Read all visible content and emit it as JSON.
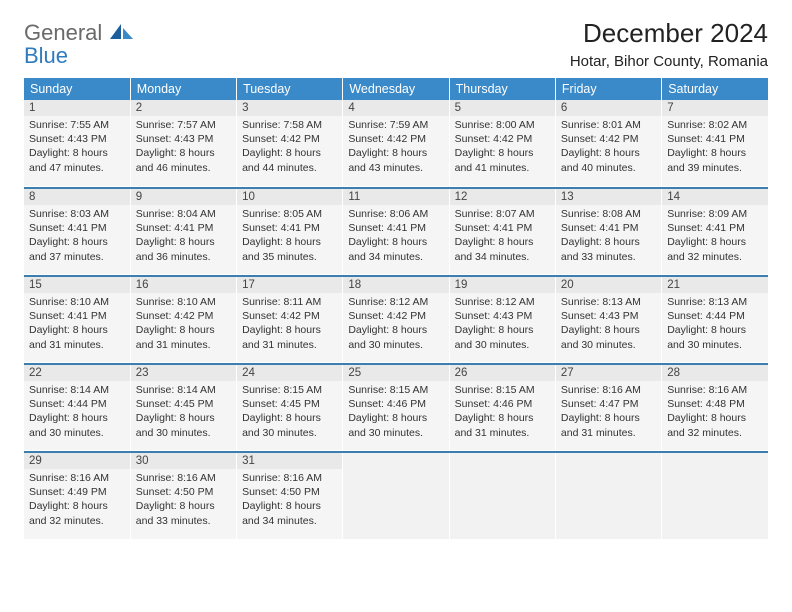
{
  "logo": {
    "line1": "General",
    "line2": "Blue",
    "text_color": "#6a6a6a",
    "blue_color": "#2f7bbf",
    "icon_fill_dark": "#1b5e9b",
    "icon_fill_light": "#3a89c9"
  },
  "header": {
    "month_title": "December 2024",
    "location": "Hotar, Bihor County, Romania"
  },
  "style": {
    "header_bg": "#3a89c9",
    "header_fg": "#ffffff",
    "row_divider": "#3a7fb0",
    "daynum_bg": "#e9e9e9",
    "daybody_bg": "#f5f5f5",
    "empty_bg": "#f2f2f2",
    "text_color": "#333333",
    "fontsize_header": 12.5,
    "fontsize_daynum": 11.5,
    "fontsize_body": 10.5
  },
  "weekdays": [
    "Sunday",
    "Monday",
    "Tuesday",
    "Wednesday",
    "Thursday",
    "Friday",
    "Saturday"
  ],
  "weeks": [
    [
      {
        "n": "1",
        "sr": "7:55 AM",
        "ss": "4:43 PM",
        "dl": "8 hours and 47 minutes."
      },
      {
        "n": "2",
        "sr": "7:57 AM",
        "ss": "4:43 PM",
        "dl": "8 hours and 46 minutes."
      },
      {
        "n": "3",
        "sr": "7:58 AM",
        "ss": "4:42 PM",
        "dl": "8 hours and 44 minutes."
      },
      {
        "n": "4",
        "sr": "7:59 AM",
        "ss": "4:42 PM",
        "dl": "8 hours and 43 minutes."
      },
      {
        "n": "5",
        "sr": "8:00 AM",
        "ss": "4:42 PM",
        "dl": "8 hours and 41 minutes."
      },
      {
        "n": "6",
        "sr": "8:01 AM",
        "ss": "4:42 PM",
        "dl": "8 hours and 40 minutes."
      },
      {
        "n": "7",
        "sr": "8:02 AM",
        "ss": "4:41 PM",
        "dl": "8 hours and 39 minutes."
      }
    ],
    [
      {
        "n": "8",
        "sr": "8:03 AM",
        "ss": "4:41 PM",
        "dl": "8 hours and 37 minutes."
      },
      {
        "n": "9",
        "sr": "8:04 AM",
        "ss": "4:41 PM",
        "dl": "8 hours and 36 minutes."
      },
      {
        "n": "10",
        "sr": "8:05 AM",
        "ss": "4:41 PM",
        "dl": "8 hours and 35 minutes."
      },
      {
        "n": "11",
        "sr": "8:06 AM",
        "ss": "4:41 PM",
        "dl": "8 hours and 34 minutes."
      },
      {
        "n": "12",
        "sr": "8:07 AM",
        "ss": "4:41 PM",
        "dl": "8 hours and 34 minutes."
      },
      {
        "n": "13",
        "sr": "8:08 AM",
        "ss": "4:41 PM",
        "dl": "8 hours and 33 minutes."
      },
      {
        "n": "14",
        "sr": "8:09 AM",
        "ss": "4:41 PM",
        "dl": "8 hours and 32 minutes."
      }
    ],
    [
      {
        "n": "15",
        "sr": "8:10 AM",
        "ss": "4:41 PM",
        "dl": "8 hours and 31 minutes."
      },
      {
        "n": "16",
        "sr": "8:10 AM",
        "ss": "4:42 PM",
        "dl": "8 hours and 31 minutes."
      },
      {
        "n": "17",
        "sr": "8:11 AM",
        "ss": "4:42 PM",
        "dl": "8 hours and 31 minutes."
      },
      {
        "n": "18",
        "sr": "8:12 AM",
        "ss": "4:42 PM",
        "dl": "8 hours and 30 minutes."
      },
      {
        "n": "19",
        "sr": "8:12 AM",
        "ss": "4:43 PM",
        "dl": "8 hours and 30 minutes."
      },
      {
        "n": "20",
        "sr": "8:13 AM",
        "ss": "4:43 PM",
        "dl": "8 hours and 30 minutes."
      },
      {
        "n": "21",
        "sr": "8:13 AM",
        "ss": "4:44 PM",
        "dl": "8 hours and 30 minutes."
      }
    ],
    [
      {
        "n": "22",
        "sr": "8:14 AM",
        "ss": "4:44 PM",
        "dl": "8 hours and 30 minutes."
      },
      {
        "n": "23",
        "sr": "8:14 AM",
        "ss": "4:45 PM",
        "dl": "8 hours and 30 minutes."
      },
      {
        "n": "24",
        "sr": "8:15 AM",
        "ss": "4:45 PM",
        "dl": "8 hours and 30 minutes."
      },
      {
        "n": "25",
        "sr": "8:15 AM",
        "ss": "4:46 PM",
        "dl": "8 hours and 30 minutes."
      },
      {
        "n": "26",
        "sr": "8:15 AM",
        "ss": "4:46 PM",
        "dl": "8 hours and 31 minutes."
      },
      {
        "n": "27",
        "sr": "8:16 AM",
        "ss": "4:47 PM",
        "dl": "8 hours and 31 minutes."
      },
      {
        "n": "28",
        "sr": "8:16 AM",
        "ss": "4:48 PM",
        "dl": "8 hours and 32 minutes."
      }
    ],
    [
      {
        "n": "29",
        "sr": "8:16 AM",
        "ss": "4:49 PM",
        "dl": "8 hours and 32 minutes."
      },
      {
        "n": "30",
        "sr": "8:16 AM",
        "ss": "4:50 PM",
        "dl": "8 hours and 33 minutes."
      },
      {
        "n": "31",
        "sr": "8:16 AM",
        "ss": "4:50 PM",
        "dl": "8 hours and 34 minutes."
      },
      null,
      null,
      null,
      null
    ]
  ],
  "labels": {
    "sunrise": "Sunrise:",
    "sunset": "Sunset:",
    "daylight": "Daylight:"
  }
}
